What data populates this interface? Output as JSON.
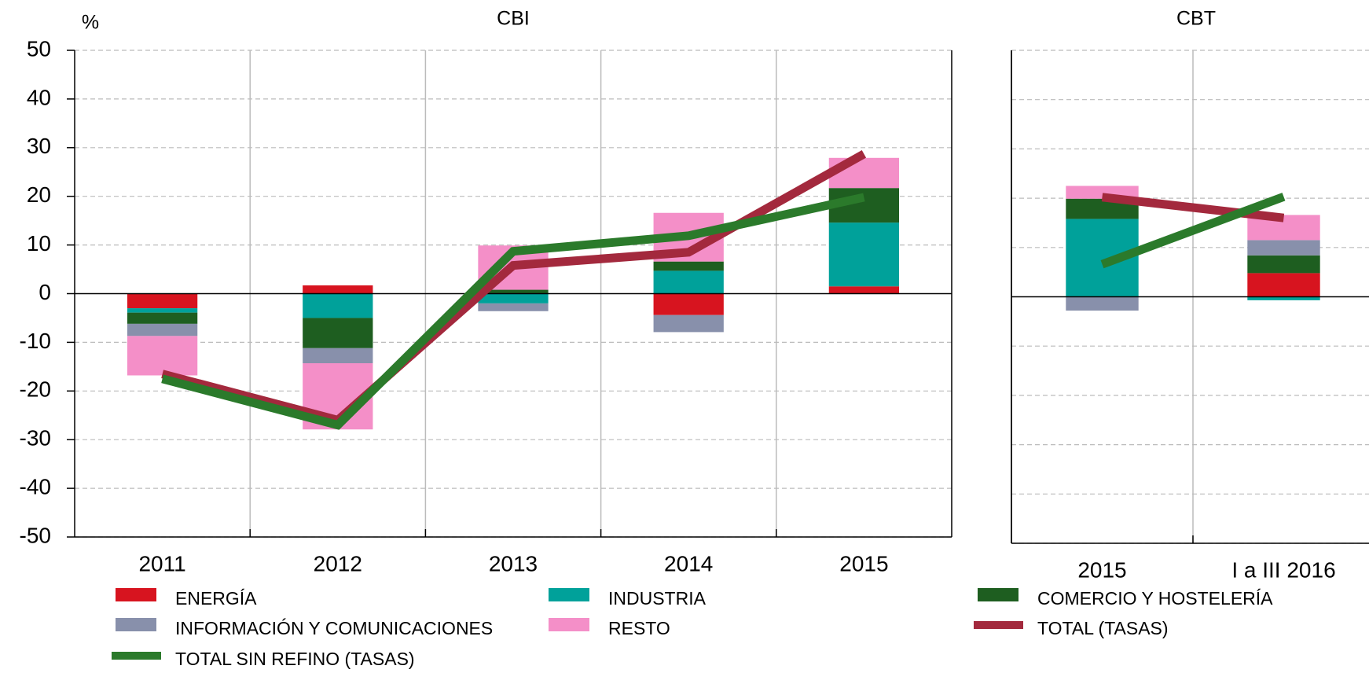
{
  "chart_data": [
    {
      "type": "bar",
      "title": "CBI",
      "y_label": "%",
      "stacked": true,
      "categories": [
        "2011",
        "2012",
        "2013",
        "2014",
        "2015"
      ],
      "ylim": [
        -50,
        50
      ],
      "yticks": [
        -50,
        -40,
        -30,
        -20,
        -10,
        0,
        10,
        20,
        30,
        40,
        50
      ],
      "grid": true,
      "series": [
        {
          "name": "ENERGÍA",
          "color": "#d7141f",
          "values": [
            -3.0,
            1.7,
            0,
            -4.4,
            1.5
          ]
        },
        {
          "name": "INDUSTRIA",
          "color": "#00a19a",
          "values": [
            -0.9,
            -5.0,
            -2.0,
            4.7,
            13.1
          ]
        },
        {
          "name": "COMERCIO Y HOSTELERÍA",
          "color": "#1e5e20",
          "values": [
            -2.3,
            -6.2,
            0.8,
            1.9,
            7.1
          ]
        },
        {
          "name": "INFORMACIÓN Y COMUNICACIONES",
          "color": "#8890ab",
          "values": [
            -2.5,
            -3.1,
            -1.6,
            -3.5,
            0
          ]
        },
        {
          "name": "RESTO",
          "color": "#f48fc8",
          "values": [
            -8.1,
            -13.6,
            9.1,
            10.0,
            6.2
          ]
        },
        {
          "name": "TOTAL (TASAS)",
          "color": "#a3293d",
          "type": "line",
          "values": [
            -16.5,
            -26.0,
            5.8,
            8.5,
            28.7
          ]
        },
        {
          "name": "TOTAL SIN REFINO (TASAS)",
          "color": "#2b7a2b",
          "type": "line",
          "values": [
            -17.5,
            -27.0,
            8.7,
            11.9,
            19.8
          ]
        }
      ]
    },
    {
      "type": "bar",
      "title": "CBT",
      "stacked": true,
      "categories": [
        "2015",
        "I a III 2016"
      ],
      "ylim": [
        -50,
        50
      ],
      "yticks": [
        -50,
        -40,
        -30,
        -20,
        -10,
        0,
        10,
        20,
        30,
        40,
        50
      ],
      "grid": true,
      "series": [
        {
          "color": "#d7141f",
          "values": [
            0,
            4.8
          ]
        },
        {
          "color": "#00a19a",
          "values": [
            15.8,
            -0.7
          ]
        },
        {
          "color": "#1e5e20",
          "values": [
            4.1,
            3.6
          ]
        },
        {
          "color": "#8890ab",
          "values": [
            -2.8,
            3.1
          ]
        },
        {
          "color": "#f48fc8",
          "values": [
            2.6,
            5.1
          ]
        },
        {
          "color": "#a3293d",
          "type": "line",
          "values": [
            20.2,
            16.0
          ]
        },
        {
          "color": "#2b7a2b",
          "type": "line",
          "values": [
            6.6,
            20.3
          ]
        }
      ]
    }
  ]
}
